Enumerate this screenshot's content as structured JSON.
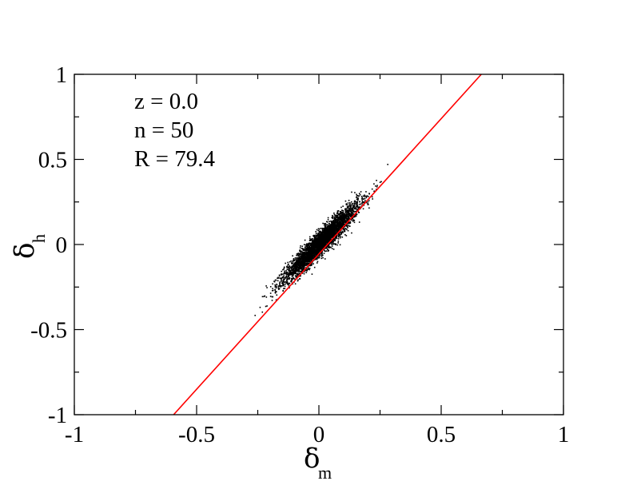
{
  "chart_data": {
    "type": "scatter",
    "xlabel": {
      "symbol": "δ",
      "subscript": "m"
    },
    "ylabel": {
      "symbol": "δ",
      "subscript": "h"
    },
    "xlim": [
      -1,
      1
    ],
    "ylim": [
      -1,
      1
    ],
    "xticks": [
      -1,
      -0.5,
      0,
      0.5,
      1
    ],
    "xtick_labels": [
      "-1",
      "-0.5",
      "0",
      "0.5",
      "1"
    ],
    "yticks": [
      -1,
      -0.5,
      0,
      0.5,
      1
    ],
    "ytick_labels": [
      "-1",
      "-0.5",
      "0",
      "0.5",
      "1"
    ],
    "annotations": [
      "z = 0.0",
      "n = 50",
      "R = 79.4"
    ],
    "grid": false,
    "scatter": {
      "color": "#000000",
      "count": 4000,
      "x_range": [
        -0.28,
        0.36
      ],
      "slope": 1.4,
      "intercept": 0.0
    },
    "fit_line": {
      "color": "#ff0000",
      "points": [
        [
          -0.594,
          -1.0
        ],
        [
          0.664,
          1.0
        ]
      ]
    }
  }
}
